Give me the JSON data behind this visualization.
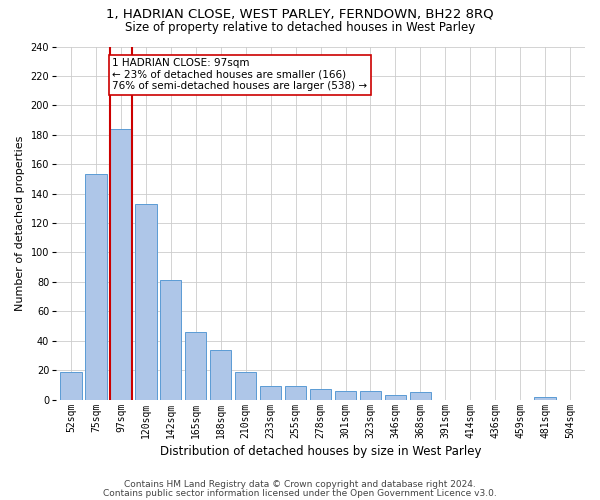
{
  "title1": "1, HADRIAN CLOSE, WEST PARLEY, FERNDOWN, BH22 8RQ",
  "title2": "Size of property relative to detached houses in West Parley",
  "xlabel": "Distribution of detached houses by size in West Parley",
  "ylabel": "Number of detached properties",
  "categories": [
    "52sqm",
    "75sqm",
    "97sqm",
    "120sqm",
    "142sqm",
    "165sqm",
    "188sqm",
    "210sqm",
    "233sqm",
    "255sqm",
    "278sqm",
    "301sqm",
    "323sqm",
    "346sqm",
    "368sqm",
    "391sqm",
    "414sqm",
    "436sqm",
    "459sqm",
    "481sqm",
    "504sqm"
  ],
  "values": [
    19,
    153,
    184,
    133,
    81,
    46,
    34,
    19,
    9,
    9,
    7,
    6,
    6,
    3,
    5,
    0,
    0,
    0,
    0,
    2,
    0
  ],
  "bar_color": "#aec6e8",
  "bar_edge_color": "#5b9bd5",
  "highlight_index": 2,
  "highlight_line_color": "#cc0000",
  "annotation_text": "1 HADRIAN CLOSE: 97sqm\n← 23% of detached houses are smaller (166)\n76% of semi-detached houses are larger (538) →",
  "annotation_box_color": "#ffffff",
  "annotation_box_edge_color": "#cc0000",
  "ylim": [
    0,
    240
  ],
  "yticks": [
    0,
    20,
    40,
    60,
    80,
    100,
    120,
    140,
    160,
    180,
    200,
    220,
    240
  ],
  "footer1": "Contains HM Land Registry data © Crown copyright and database right 2024.",
  "footer2": "Contains public sector information licensed under the Open Government Licence v3.0.",
  "background_color": "#ffffff",
  "grid_color": "#cccccc",
  "title1_fontsize": 9.5,
  "title2_fontsize": 8.5,
  "xlabel_fontsize": 8.5,
  "ylabel_fontsize": 8,
  "tick_fontsize": 7,
  "annotation_fontsize": 7.5,
  "footer_fontsize": 6.5
}
